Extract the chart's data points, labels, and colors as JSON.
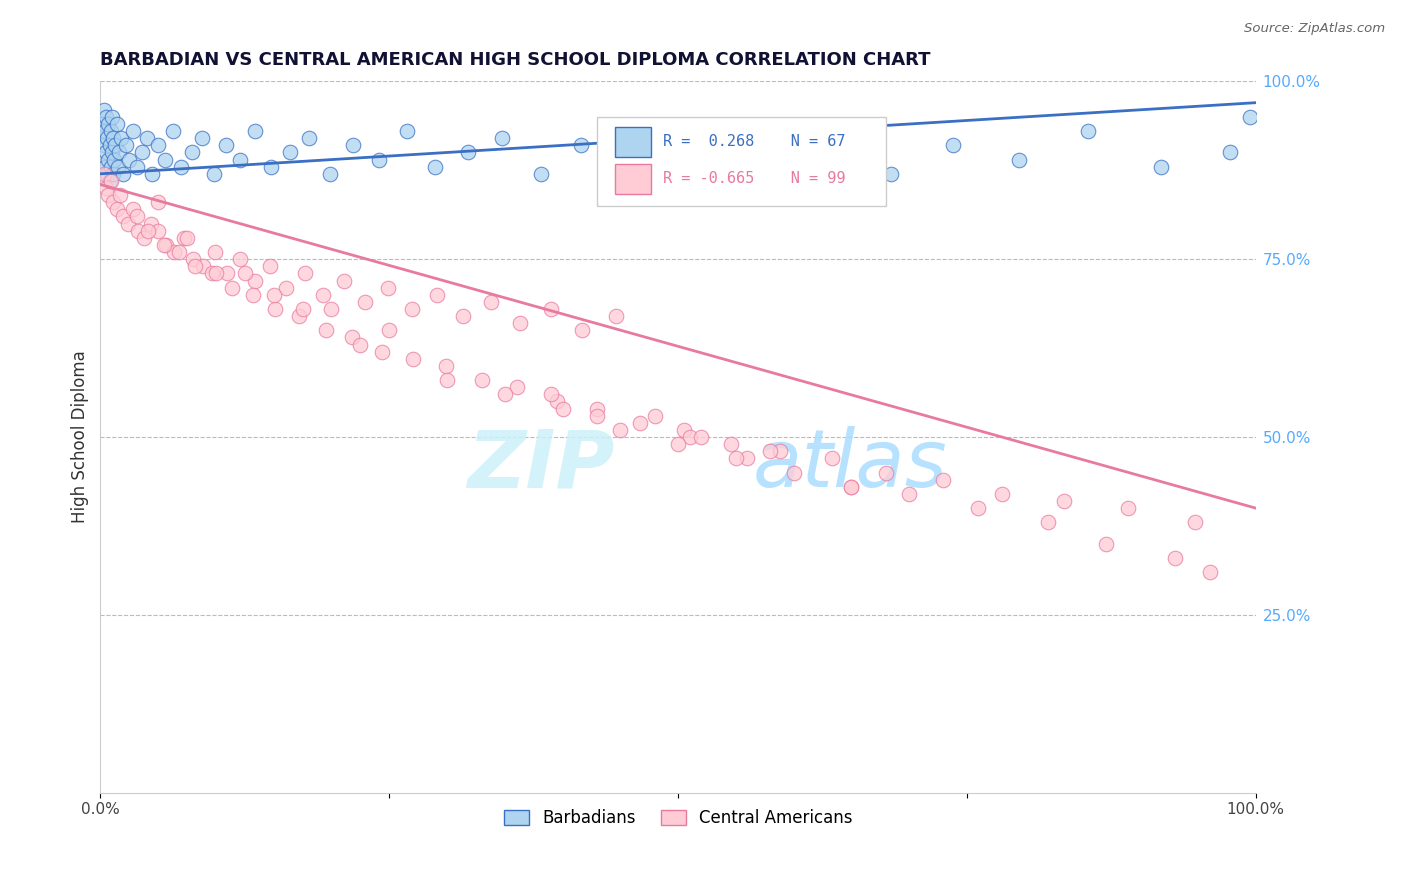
{
  "title": "BARBADIAN VS CENTRAL AMERICAN HIGH SCHOOL DIPLOMA CORRELATION CHART",
  "source": "Source: ZipAtlas.com",
  "ylabel": "High School Diploma",
  "xlim": [
    0,
    1
  ],
  "ylim": [
    0,
    1
  ],
  "yticks_right": [
    0.25,
    0.5,
    0.75,
    1.0
  ],
  "ytick_labels_right": [
    "25.0%",
    "50.0%",
    "75.0%",
    "100.0%"
  ],
  "blue_color": "#aed4f0",
  "pink_color": "#ffccd5",
  "blue_line_color": "#3a6fc4",
  "pink_line_color": "#e87aa0",
  "barbadians_x": [
    0.002,
    0.003,
    0.003,
    0.004,
    0.004,
    0.005,
    0.005,
    0.006,
    0.006,
    0.007,
    0.007,
    0.008,
    0.008,
    0.009,
    0.009,
    0.01,
    0.01,
    0.011,
    0.011,
    0.012,
    0.013,
    0.014,
    0.015,
    0.016,
    0.018,
    0.02,
    0.022,
    0.025,
    0.028,
    0.032,
    0.036,
    0.04,
    0.045,
    0.05,
    0.056,
    0.063,
    0.07,
    0.079,
    0.088,
    0.098,
    0.109,
    0.121,
    0.134,
    0.148,
    0.164,
    0.181,
    0.199,
    0.219,
    0.241,
    0.265,
    0.29,
    0.318,
    0.348,
    0.381,
    0.416,
    0.454,
    0.495,
    0.538,
    0.584,
    0.633,
    0.684,
    0.738,
    0.795,
    0.855,
    0.918,
    0.978,
    0.995
  ],
  "barbadians_y": [
    0.94,
    0.96,
    0.91,
    0.93,
    0.88,
    0.95,
    0.9,
    0.92,
    0.87,
    0.94,
    0.89,
    0.91,
    0.86,
    0.93,
    0.88,
    0.95,
    0.9,
    0.92,
    0.87,
    0.89,
    0.91,
    0.94,
    0.88,
    0.9,
    0.92,
    0.87,
    0.91,
    0.89,
    0.93,
    0.88,
    0.9,
    0.92,
    0.87,
    0.91,
    0.89,
    0.93,
    0.88,
    0.9,
    0.92,
    0.87,
    0.91,
    0.89,
    0.93,
    0.88,
    0.9,
    0.92,
    0.87,
    0.91,
    0.89,
    0.93,
    0.88,
    0.9,
    0.92,
    0.87,
    0.91,
    0.89,
    0.93,
    0.88,
    0.9,
    0.92,
    0.87,
    0.91,
    0.89,
    0.93,
    0.88,
    0.9,
    0.95
  ],
  "central_americans_x": [
    0.003,
    0.005,
    0.007,
    0.009,
    0.011,
    0.014,
    0.017,
    0.02,
    0.024,
    0.028,
    0.033,
    0.038,
    0.044,
    0.05,
    0.057,
    0.064,
    0.072,
    0.08,
    0.089,
    0.099,
    0.11,
    0.121,
    0.134,
    0.147,
    0.161,
    0.177,
    0.193,
    0.211,
    0.229,
    0.249,
    0.27,
    0.291,
    0.314,
    0.338,
    0.363,
    0.39,
    0.417,
    0.446,
    0.032,
    0.041,
    0.055,
    0.068,
    0.082,
    0.097,
    0.114,
    0.132,
    0.151,
    0.172,
    0.195,
    0.218,
    0.244,
    0.271,
    0.299,
    0.33,
    0.361,
    0.395,
    0.43,
    0.467,
    0.505,
    0.546,
    0.588,
    0.633,
    0.68,
    0.729,
    0.78,
    0.834,
    0.889,
    0.947,
    0.51,
    0.56,
    0.39,
    0.43,
    0.6,
    0.65,
    0.58,
    0.48,
    0.52,
    0.7,
    0.76,
    0.82,
    0.87,
    0.93,
    0.96,
    0.1,
    0.15,
    0.2,
    0.25,
    0.05,
    0.075,
    0.125,
    0.175,
    0.225,
    0.3,
    0.35,
    0.4,
    0.45,
    0.5,
    0.55,
    0.65
  ],
  "central_americans_y": [
    0.87,
    0.85,
    0.84,
    0.86,
    0.83,
    0.82,
    0.84,
    0.81,
    0.8,
    0.82,
    0.79,
    0.78,
    0.8,
    0.79,
    0.77,
    0.76,
    0.78,
    0.75,
    0.74,
    0.76,
    0.73,
    0.75,
    0.72,
    0.74,
    0.71,
    0.73,
    0.7,
    0.72,
    0.69,
    0.71,
    0.68,
    0.7,
    0.67,
    0.69,
    0.66,
    0.68,
    0.65,
    0.67,
    0.81,
    0.79,
    0.77,
    0.76,
    0.74,
    0.73,
    0.71,
    0.7,
    0.68,
    0.67,
    0.65,
    0.64,
    0.62,
    0.61,
    0.6,
    0.58,
    0.57,
    0.55,
    0.54,
    0.52,
    0.51,
    0.49,
    0.48,
    0.47,
    0.45,
    0.44,
    0.42,
    0.41,
    0.4,
    0.38,
    0.5,
    0.47,
    0.56,
    0.53,
    0.45,
    0.43,
    0.48,
    0.53,
    0.5,
    0.42,
    0.4,
    0.38,
    0.35,
    0.33,
    0.31,
    0.73,
    0.7,
    0.68,
    0.65,
    0.83,
    0.78,
    0.73,
    0.68,
    0.63,
    0.58,
    0.56,
    0.54,
    0.51,
    0.49,
    0.47,
    0.43
  ],
  "blue_trend_x": [
    0.0,
    1.0
  ],
  "blue_trend_y_start": 0.87,
  "blue_trend_y_end": 0.97,
  "pink_trend_x": [
    0.0,
    1.0
  ],
  "pink_trend_y_start": 0.855,
  "pink_trend_y_end": 0.4
}
